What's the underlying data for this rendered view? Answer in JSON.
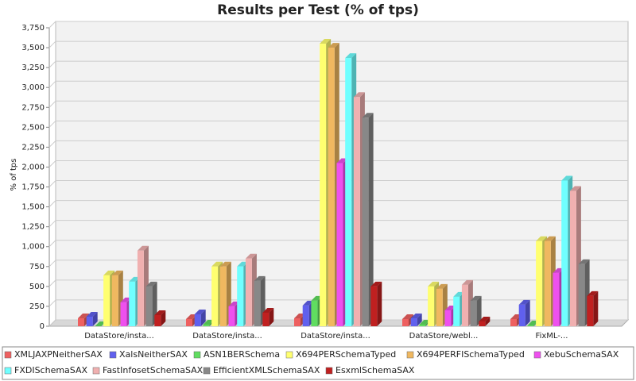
{
  "chart_data": {
    "type": "bar3d",
    "title": "Results per Test (% of tps)",
    "y_label": "% of tps",
    "categories": [
      "DataStore/insta...",
      "DataStore/insta...",
      "DataStore/insta...",
      "DataStore/webl...",
      "FixML-..."
    ],
    "series": [
      {
        "name": "XMLJAXPNeitherSAX",
        "color": "#ee6060",
        "values": [
          100,
          90,
          100,
          90,
          90
        ]
      },
      {
        "name": "XalsNeitherSAX",
        "color": "#6060ee",
        "values": [
          120,
          150,
          260,
          100,
          270
        ]
      },
      {
        "name": "ASN1BERSchema",
        "color": "#60dd60",
        "values": [
          0,
          20,
          320,
          20,
          10
        ]
      },
      {
        "name": "X694PERSchemaTyped",
        "color": "#ffff70",
        "values": [
          640,
          750,
          3550,
          500,
          1070
        ]
      },
      {
        "name": "X694PERFISchemaTyped",
        "color": "#f0b860",
        "values": [
          640,
          750,
          3500,
          470,
          1070
        ]
      },
      {
        "name": "XebuSchemaSAX",
        "color": "#ee50ee",
        "values": [
          300,
          250,
          2050,
          200,
          670
        ]
      },
      {
        "name": "FXDISchemaSAX",
        "color": "#70ffff",
        "values": [
          560,
          750,
          3370,
          370,
          1830
        ]
      },
      {
        "name": "FastInfosetSchemaSAX",
        "color": "#f0b0b0",
        "values": [
          950,
          850,
          2880,
          520,
          1700
        ]
      },
      {
        "name": "EfficientXMLSchemaSAX",
        "color": "#888888",
        "values": [
          500,
          570,
          2620,
          320,
          780
        ]
      },
      {
        "name": "EsxmlSchemaSAX",
        "color": "#c02020",
        "values": [
          140,
          170,
          500,
          60,
          380
        ]
      }
    ],
    "ylim": [
      0,
      3750
    ],
    "yticks": [
      0,
      250,
      500,
      750,
      {
        "value": 1000,
        "label": "1,000"
      },
      {
        "value": 1250,
        "label": "1,250"
      },
      {
        "value": 1500,
        "label": "1,500"
      },
      {
        "value": 1750,
        "label": "1,750"
      },
      {
        "value": 2000,
        "label": "2,000"
      },
      {
        "value": 2250,
        "label": "2,250"
      },
      {
        "value": 2500,
        "label": "2,500"
      },
      {
        "value": 2750,
        "label": "2,750"
      },
      {
        "value": 3000,
        "label": "3,000"
      },
      {
        "value": 3250,
        "label": "3,250"
      },
      {
        "value": 3500,
        "label": "3,500"
      },
      {
        "value": 3750,
        "label": "3,750"
      }
    ],
    "grid": true
  }
}
